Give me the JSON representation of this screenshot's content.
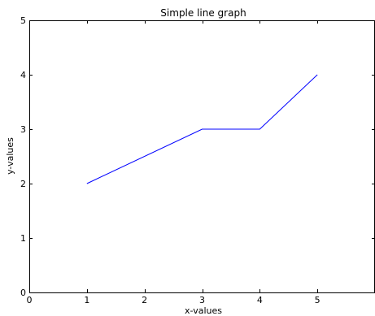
{
  "chart_data": {
    "type": "line",
    "title": "Simple line graph",
    "xlabel": "x-values",
    "ylabel": "y-values",
    "xlim": [
      0,
      6
    ],
    "ylim": [
      0,
      5
    ],
    "x_ticks": [
      "0",
      "1",
      "2",
      "3",
      "4",
      "5"
    ],
    "y_ticks": [
      "0",
      "1",
      "2",
      "3",
      "4",
      "5"
    ],
    "grid": false,
    "series": [
      {
        "x": [
          1,
          3,
          4,
          5
        ],
        "y": [
          2,
          3,
          3,
          4
        ],
        "color": "#0000ff"
      }
    ]
  }
}
